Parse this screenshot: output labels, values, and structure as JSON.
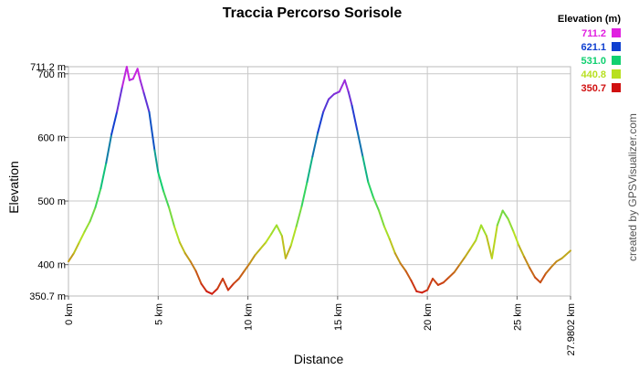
{
  "chart_data": {
    "type": "line",
    "title": "Traccia Percorso Sorisole",
    "xlabel": "Distance",
    "ylabel": "Elevation",
    "credit": "created by GPSVisualizer.com",
    "xlim": [
      0,
      27.9802
    ],
    "ylim": [
      350.7,
      711.2
    ],
    "x_ticks": [
      {
        "value": 0,
        "label": "0 km"
      },
      {
        "value": 5,
        "label": "5 km"
      },
      {
        "value": 10,
        "label": "10 km"
      },
      {
        "value": 15,
        "label": "15 km"
      },
      {
        "value": 20,
        "label": "20 km"
      },
      {
        "value": 25,
        "label": "25 km"
      },
      {
        "value": 27.9802,
        "label": "27.9802 km"
      }
    ],
    "y_ticks": [
      {
        "value": 711.2,
        "label": "711.2 m"
      },
      {
        "value": 700,
        "label": "700 m"
      },
      {
        "value": 600,
        "label": "600 m"
      },
      {
        "value": 500,
        "label": "500 m"
      },
      {
        "value": 400,
        "label": "400 m"
      },
      {
        "value": 350.7,
        "label": "350.7 m"
      }
    ],
    "color_scale": {
      "title": "Elevation (m)",
      "entries": [
        {
          "label": "711.2",
          "value": 711.2,
          "color": "#e020e0"
        },
        {
          "label": "621.1",
          "value": 621.1,
          "color": "#1040d0"
        },
        {
          "label": "531.0",
          "value": 531.0,
          "color": "#10d070"
        },
        {
          "label": "440.8",
          "value": 440.8,
          "color": "#b8e020"
        },
        {
          "label": "350.7",
          "value": 350.7,
          "color": "#d01010"
        }
      ]
    },
    "grid": true,
    "legend": "top-right",
    "series": [
      {
        "x": [
          0,
          0.3,
          0.6,
          0.9,
          1.2,
          1.5,
          1.8,
          2.1,
          2.4,
          2.7,
          3.0,
          3.25,
          3.4,
          3.6,
          3.85,
          4.0,
          4.2,
          4.5,
          4.8,
          5.0,
          5.3,
          5.6,
          5.9,
          6.2,
          6.5,
          6.8,
          7.1,
          7.4,
          7.7,
          8.0,
          8.3,
          8.6,
          8.9,
          9.2,
          9.5,
          9.8,
          10.1,
          10.4,
          10.7,
          11.0,
          11.3,
          11.6,
          11.9,
          12.1,
          12.4,
          12.7,
          13.0,
          13.3,
          13.6,
          13.9,
          14.2,
          14.5,
          14.8,
          15.1,
          15.4,
          15.6,
          15.8,
          16.1,
          16.4,
          16.7,
          17.0,
          17.3,
          17.6,
          17.9,
          18.2,
          18.5,
          18.8,
          19.1,
          19.4,
          19.7,
          20.0,
          20.3,
          20.6,
          20.9,
          21.2,
          21.5,
          21.8,
          22.1,
          22.4,
          22.7,
          23.0,
          23.3,
          23.6,
          23.9,
          24.2,
          24.5,
          24.8,
          25.1,
          25.4,
          25.7,
          26.0,
          26.3,
          26.6,
          26.9,
          27.2,
          27.5,
          27.9802
        ],
        "y": [
          405,
          418,
          435,
          452,
          468,
          490,
          520,
          560,
          605,
          640,
          680,
          711,
          690,
          692,
          708,
          690,
          670,
          640,
          580,
          545,
          515,
          490,
          460,
          435,
          418,
          405,
          390,
          370,
          358,
          354,
          362,
          378,
          360,
          370,
          378,
          390,
          402,
          415,
          425,
          435,
          448,
          462,
          445,
          410,
          430,
          460,
          492,
          530,
          570,
          608,
          640,
          660,
          668,
          672,
          690,
          672,
          650,
          610,
          570,
          530,
          505,
          485,
          460,
          440,
          418,
          402,
          390,
          375,
          358,
          356,
          360,
          378,
          368,
          372,
          380,
          388,
          400,
          412,
          425,
          438,
          462,
          445,
          410,
          462,
          485,
          472,
          452,
          430,
          412,
          395,
          380,
          372,
          386,
          396,
          405,
          410,
          422
        ]
      }
    ]
  }
}
